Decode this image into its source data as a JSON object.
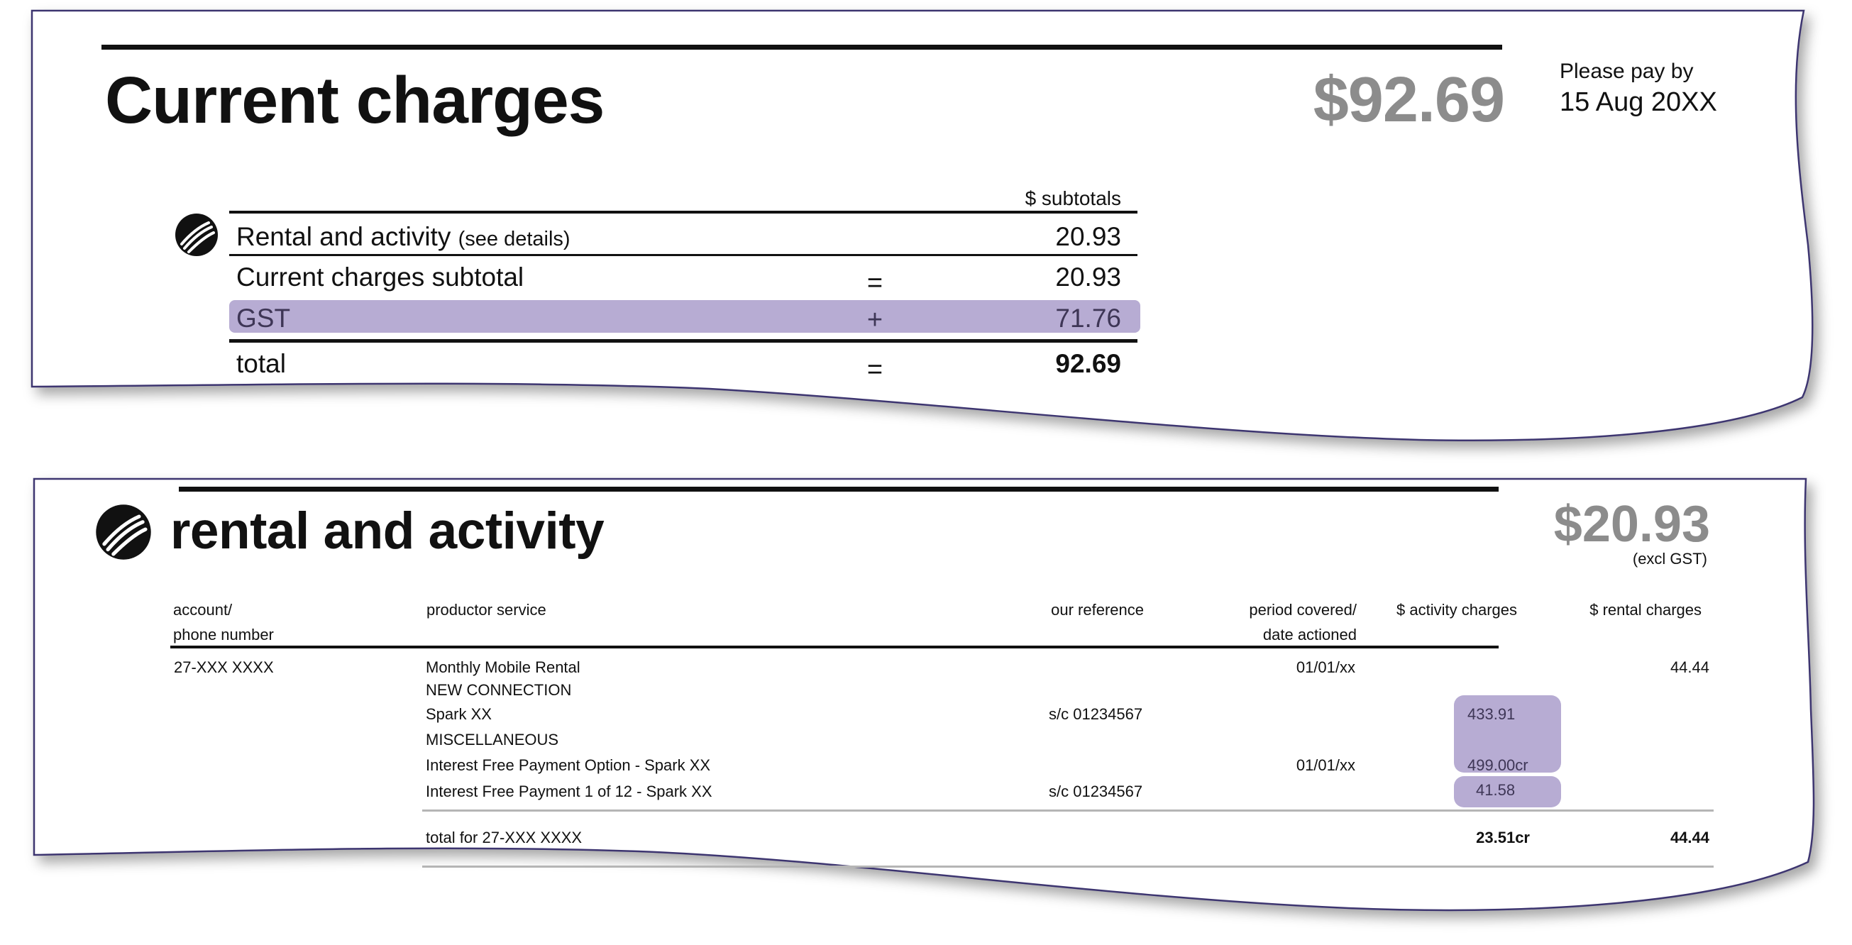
{
  "summary": {
    "title": "Current charges",
    "amount": "$92.69",
    "pay_by_label": "Please pay by",
    "pay_by_date": "15 Aug 20XX",
    "subtotals_header": "$ subtotals",
    "rows": [
      {
        "label": "Rental and activity",
        "note": "(see details)",
        "op": "",
        "value": "20.93"
      },
      {
        "label": "Current charges subtotal",
        "note": "",
        "op": "=",
        "value": "20.93"
      },
      {
        "label": "GST",
        "note": "",
        "op": "+",
        "value": "71.76"
      },
      {
        "label": "total",
        "note": "",
        "op": "=",
        "value": "92.69"
      }
    ]
  },
  "rental": {
    "title": "rental and activity",
    "amount": "$20.93",
    "amount_note": "(excl GST)",
    "columns": {
      "account_line1": "account/",
      "account_line2": "phone number",
      "product": "productor service",
      "reference": "our reference",
      "period_line1": "period covered/",
      "period_line2": "date actioned",
      "activity": "$ activity charges",
      "rental": "$ rental charges"
    },
    "account_number": "27-XXX XXXX",
    "lines": [
      {
        "product": "Monthly Mobile Rental",
        "reference": "",
        "period": "01/01/xx",
        "activity": "",
        "rental": "44.44"
      },
      {
        "product": "NEW CONNECTION",
        "reference": "",
        "period": "",
        "activity": "",
        "rental": ""
      },
      {
        "product": "Spark XX",
        "reference": "s/c 01234567",
        "period": "",
        "activity": "433.91",
        "rental": ""
      },
      {
        "product": "MISCELLANEOUS",
        "reference": "",
        "period": "",
        "activity": "",
        "rental": ""
      },
      {
        "product": "Interest Free Payment Option - Spark XX",
        "reference": "",
        "period": "01/01/xx",
        "activity": "499.00cr",
        "rental": ""
      },
      {
        "product": "Interest Free Payment 1 of 12 - Spark XX",
        "reference": "s/c 01234567",
        "period": "",
        "activity": "41.58",
        "rental": ""
      }
    ],
    "total": {
      "label": "total for 27-XXX XXXX",
      "activity": "23.51cr",
      "rental": "44.44"
    }
  },
  "colors": {
    "highlight": "#b7acd3",
    "grey_amount": "#8c8c8c",
    "border": "#3d3670"
  },
  "icons": [
    "spark-logo-icon"
  ]
}
